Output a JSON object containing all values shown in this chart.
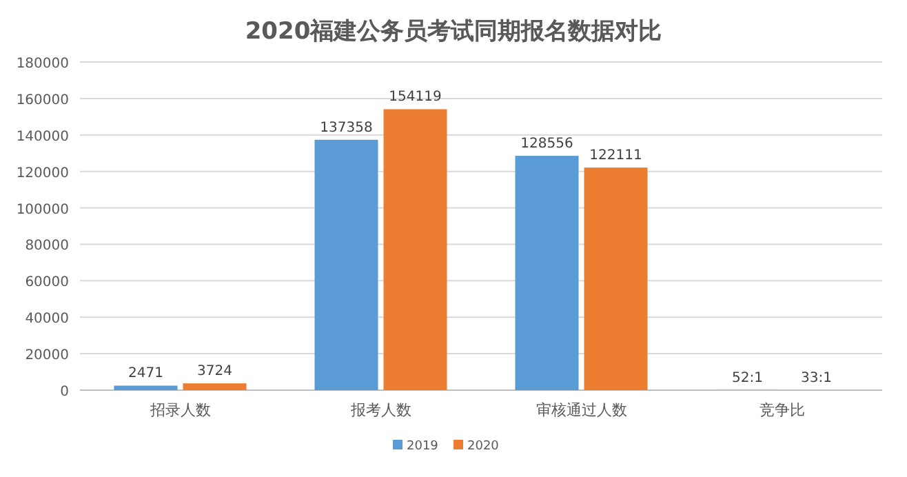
{
  "chart_data": {
    "type": "bar",
    "title": "2020福建公务员考试同期报名数据对比",
    "categories": [
      "招录人数",
      "报考人数",
      "审核通过人数",
      "竞争比"
    ],
    "series": [
      {
        "name": "2019",
        "color": "#5b9bd5",
        "values": [
          2471,
          137358,
          128556,
          52
        ],
        "value_labels": [
          "2471",
          "137358",
          "128556",
          "52:1"
        ]
      },
      {
        "name": "2020",
        "color": "#ed7d31",
        "values": [
          3724,
          154119,
          122111,
          33
        ],
        "value_labels": [
          "3724",
          "154119",
          "122111",
          "33:1"
        ]
      }
    ],
    "ylim": [
      0,
      180000
    ],
    "yticks": [
      0,
      20000,
      40000,
      60000,
      80000,
      100000,
      120000,
      140000,
      160000,
      180000
    ],
    "grid": "y",
    "legend": "bottom"
  }
}
